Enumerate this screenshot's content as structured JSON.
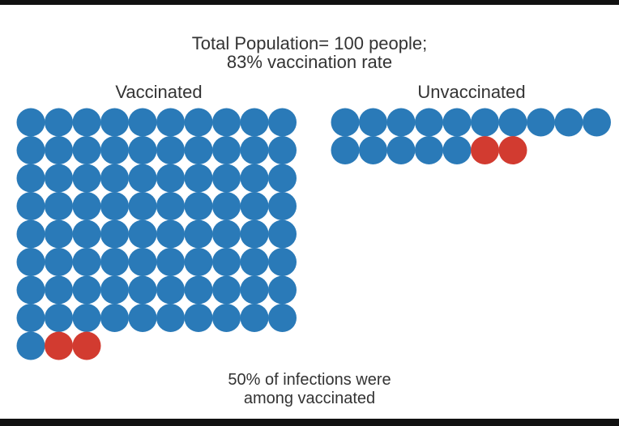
{
  "title_line1": "Total Population= 100 people;",
  "title_line2": "83% vaccination rate",
  "vaccinated_label": "Vaccinated",
  "unvaccinated_label": "Unvaccinated",
  "footer_line1": "50% of infections were",
  "footer_line2": "among vaccinated",
  "colors": {
    "healthy": "#2a7ab8",
    "infected": "#d23b30"
  },
  "groups": {
    "vaccinated": {
      "total": 83,
      "infected": 2
    },
    "unvaccinated": {
      "total": 17,
      "infected": 2
    }
  }
}
